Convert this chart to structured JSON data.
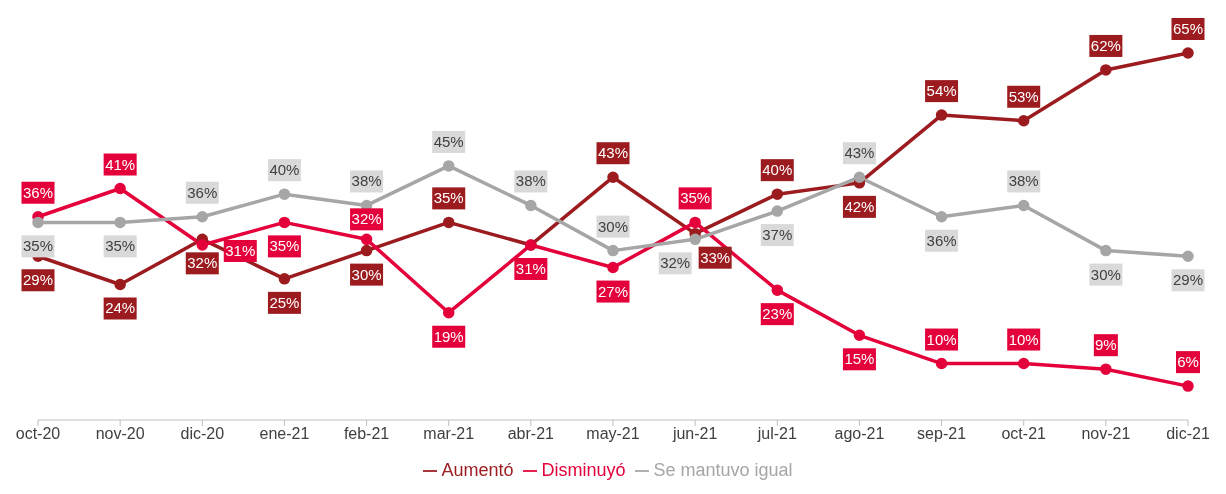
{
  "chart_data": {
    "type": "line",
    "categories": [
      "oct-20",
      "nov-20",
      "dic-20",
      "ene-21",
      "feb-21",
      "mar-21",
      "abr-21",
      "may-21",
      "jun-21",
      "jul-21",
      "ago-21",
      "sep-21",
      "oct-21",
      "nov-21",
      "dic-21"
    ],
    "series": [
      {
        "name": "Aumentó",
        "color": "#9b1b1f",
        "values": [
          29,
          24,
          32,
          25,
          30,
          35,
          31,
          43,
          33,
          40,
          42,
          54,
          53,
          62,
          65
        ],
        "value_labels": [
          "29%",
          "24%",
          "32%",
          "25%",
          "30%",
          "35%",
          null,
          "43%",
          "33%",
          "40%",
          "42%",
          "54%",
          "53%",
          "62%",
          "65%"
        ]
      },
      {
        "name": "Disminuyó",
        "color": "#e4003a",
        "values": [
          36,
          41,
          31,
          35,
          32,
          19,
          31,
          27,
          35,
          23,
          15,
          10,
          10,
          9,
          6
        ],
        "value_labels": [
          "36%",
          "41%",
          "31%",
          "35%",
          "32%",
          "19%",
          "31%",
          "27%",
          "35%",
          "23%",
          "15%",
          "10%",
          "10%",
          "9%",
          "6%"
        ]
      },
      {
        "name": "Se mantuvo igual",
        "color": "#a6a6a6",
        "values": [
          35,
          35,
          36,
          40,
          38,
          45,
          38,
          30,
          32,
          37,
          43,
          36,
          38,
          30,
          29
        ],
        "value_labels": [
          "35%",
          "35%",
          "36%",
          "40%",
          "38%",
          "45%",
          "38%",
          "30%",
          "32%",
          "37%",
          "43%",
          "36%",
          "38%",
          "30%",
          "29%"
        ]
      }
    ],
    "legend": "bottom",
    "marker": "circle",
    "grid": false
  }
}
